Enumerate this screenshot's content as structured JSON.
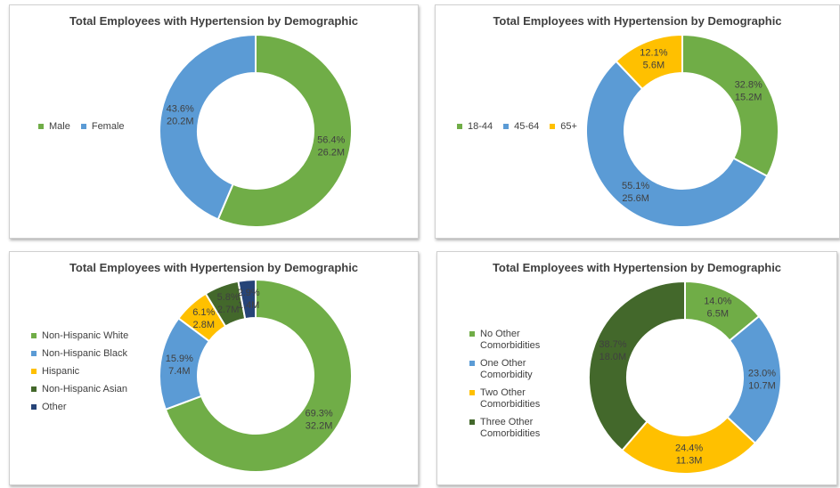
{
  "chart_data": [
    {
      "type": "pie",
      "donut": true,
      "title": "Total Employees with Hypertension by Demographic",
      "categories": [
        "Male",
        "Female"
      ],
      "values": [
        56.4,
        43.6
      ],
      "value_labels": [
        "56.4%",
        "43.6%"
      ],
      "counts": [
        26.2,
        20.2
      ],
      "count_labels": [
        "26.2M",
        "20.2M"
      ],
      "colors": [
        "#70ad47",
        "#5b9bd5"
      ],
      "legend": "left"
    },
    {
      "type": "pie",
      "donut": true,
      "title": "Total Employees with Hypertension by Demographic",
      "categories": [
        "18-44",
        "45-64",
        "65+"
      ],
      "values": [
        32.8,
        55.1,
        12.1
      ],
      "value_labels": [
        "32.8%",
        "55.1%",
        "12.1%"
      ],
      "counts": [
        15.2,
        25.6,
        5.6
      ],
      "count_labels": [
        "15.2M",
        "25.6M",
        "5.6M"
      ],
      "colors": [
        "#70ad47",
        "#5b9bd5",
        "#ffc000"
      ],
      "legend": "left"
    },
    {
      "type": "pie",
      "donut": true,
      "title": "Total Employees with Hypertension by Demographic",
      "categories": [
        "Non-Hispanic White",
        "Non-Hispanic Black",
        "Hispanic",
        "Non-Hispanic Asian",
        "Other"
      ],
      "values": [
        69.3,
        15.9,
        6.1,
        5.8,
        2.9
      ],
      "value_labels": [
        "69.3%",
        "15.9%",
        "6.1%",
        "5.8%",
        "2.9%"
      ],
      "counts": [
        32.2,
        7.4,
        2.8,
        2.7,
        1.4
      ],
      "count_labels": [
        "32.2M",
        "7.4M",
        "2.8M",
        "2.7M",
        "1.4M"
      ],
      "colors": [
        "#70ad47",
        "#5b9bd5",
        "#ffc000",
        "#43682b",
        "#264478"
      ],
      "legend": "left"
    },
    {
      "type": "pie",
      "donut": true,
      "title": "Total Employees with Hypertension by Demographic",
      "categories": [
        "No Other Comorbidities",
        "One Other Comorbidity",
        "Two Other Comorbidities",
        "Three Other Comorbidities"
      ],
      "values": [
        14.0,
        23.0,
        24.4,
        38.7
      ],
      "value_labels": [
        "14.0%",
        "23.0%",
        "24.4%",
        "38.7%"
      ],
      "counts": [
        6.5,
        10.7,
        11.3,
        18.0
      ],
      "count_labels": [
        "6.5M",
        "10.7M",
        "11.3M",
        "18.0M"
      ],
      "colors": [
        "#70ad47",
        "#5b9bd5",
        "#ffc000",
        "#43682b"
      ],
      "legend": "left"
    }
  ]
}
